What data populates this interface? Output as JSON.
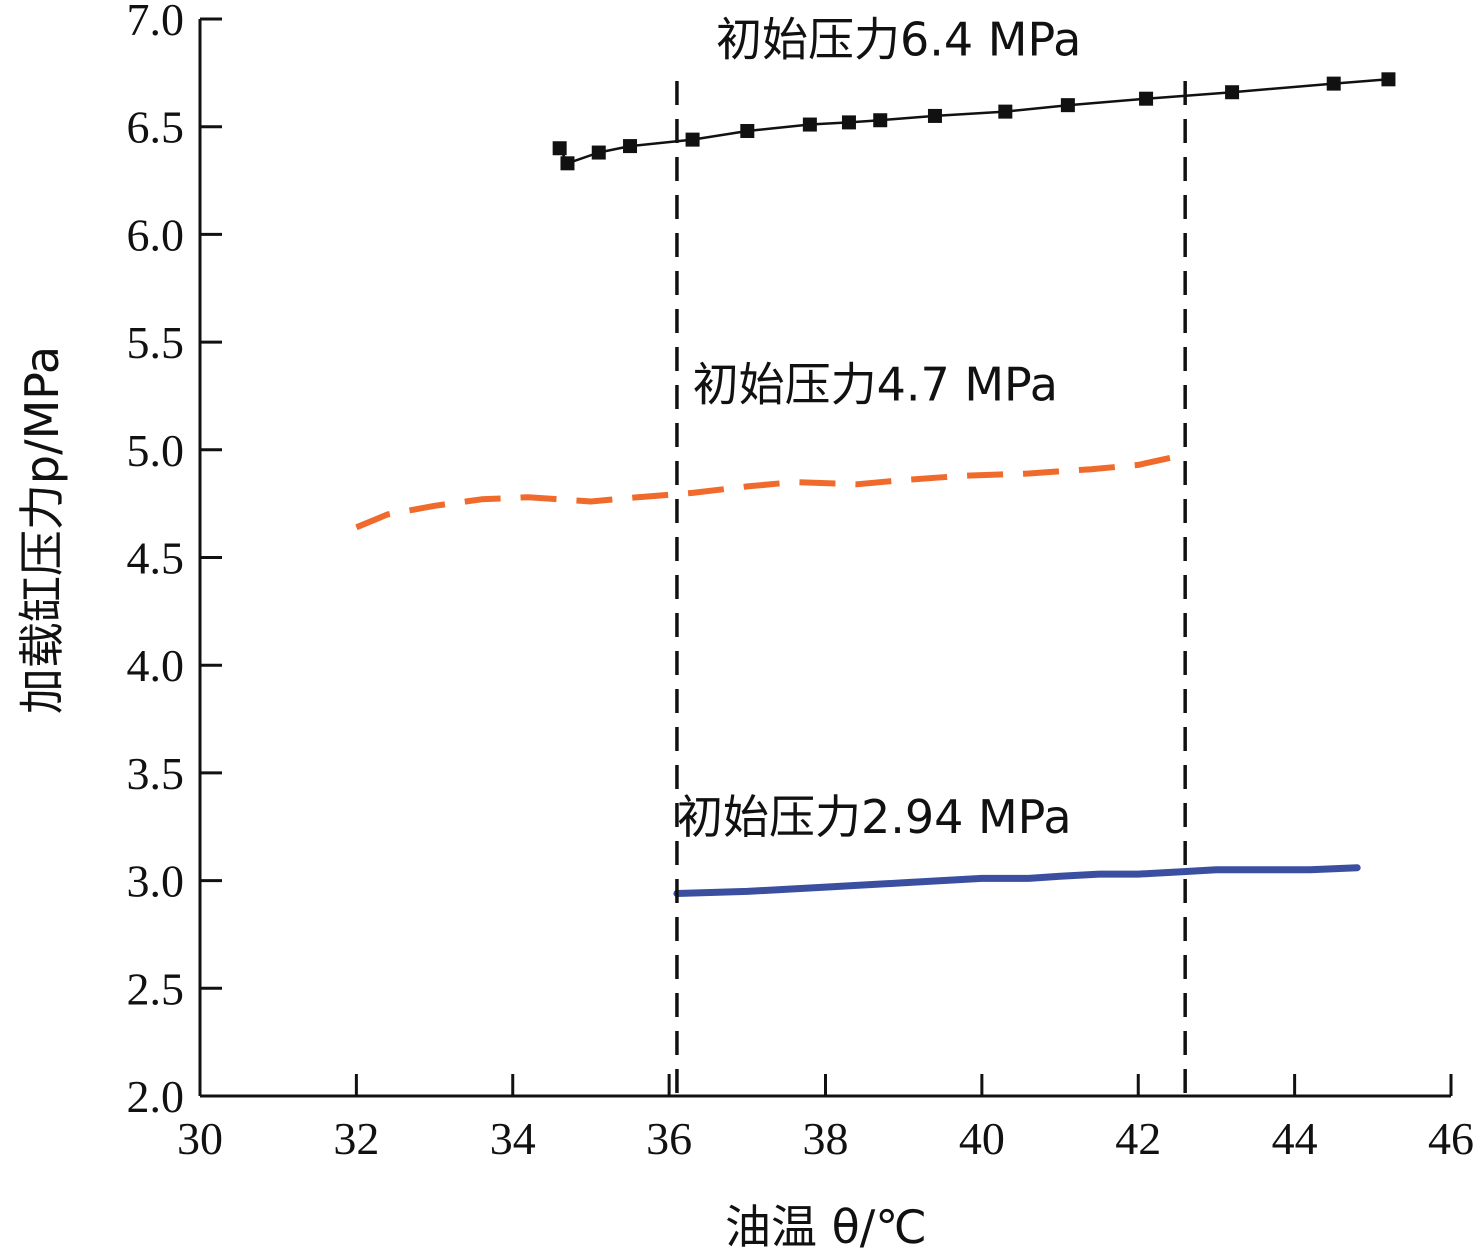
{
  "chart_data": {
    "type": "line",
    "title": "",
    "xlabel": "油温 θ/℃",
    "ylabel": "加载缸压力p/MPa",
    "xlim": [
      30,
      46
    ],
    "ylim": [
      2.0,
      7.0
    ],
    "x_ticks": [
      30,
      32,
      34,
      36,
      38,
      40,
      42,
      44,
      46
    ],
    "y_ticks": [
      2.0,
      2.5,
      3.0,
      3.5,
      4.0,
      4.5,
      5.0,
      5.5,
      6.0,
      6.5,
      7.0
    ],
    "x_tick_labels": [
      "30",
      "32",
      "34",
      "36",
      "38",
      "40",
      "42",
      "44",
      "46"
    ],
    "y_tick_labels": [
      "2.0",
      "2.5",
      "3.0",
      "3.5",
      "4.0",
      "4.5",
      "5.0",
      "5.5",
      "6.0",
      "6.5",
      "7.0"
    ],
    "grid": false,
    "series": [
      {
        "name": "初始压力6.4 MPa",
        "style": "solid-markers",
        "color": "#111111",
        "x": [
          34.6,
          34.7,
          35.1,
          35.5,
          36.3,
          37.0,
          37.8,
          38.3,
          38.7,
          39.4,
          40.3,
          41.1,
          42.1,
          43.2,
          44.5,
          45.2
        ],
        "y": [
          6.4,
          6.33,
          6.38,
          6.41,
          6.44,
          6.48,
          6.51,
          6.52,
          6.53,
          6.55,
          6.57,
          6.6,
          6.63,
          6.66,
          6.7,
          6.72
        ]
      },
      {
        "name": "初始压力4.7 MPa",
        "style": "dashed",
        "color": "#f06a2c",
        "x": [
          32.0,
          32.4,
          33.0,
          33.6,
          34.2,
          35.0,
          35.6,
          36.3,
          37.0,
          37.6,
          38.4,
          39.0,
          39.8,
          40.6,
          41.4,
          42.0,
          42.5
        ],
        "y": [
          4.64,
          4.7,
          4.74,
          4.77,
          4.78,
          4.76,
          4.78,
          4.8,
          4.83,
          4.85,
          4.84,
          4.86,
          4.88,
          4.89,
          4.91,
          4.93,
          4.97
        ]
      },
      {
        "name": "初始压力2.94 MPa",
        "style": "solid",
        "color": "#3b4fa1",
        "x": [
          36.1,
          37.0,
          38.0,
          39.0,
          40.0,
          40.6,
          41.0,
          41.5,
          42.0,
          42.5,
          43.0,
          43.4,
          43.8,
          44.2,
          44.8
        ],
        "y": [
          2.94,
          2.95,
          2.97,
          2.99,
          3.01,
          3.01,
          3.02,
          3.03,
          3.03,
          3.04,
          3.05,
          3.05,
          3.05,
          3.05,
          3.06
        ]
      }
    ],
    "vertical_markers": [
      36.1,
      42.6
    ],
    "annotations": [
      {
        "text": "初始压力6.4 MPa",
        "x": 36.6,
        "y": 6.83
      },
      {
        "text": "初始压力4.7 MPa",
        "x": 36.3,
        "y": 5.23
      },
      {
        "text": "初始压力2.94 MPa",
        "x": 36.1,
        "y": 3.22
      }
    ]
  }
}
